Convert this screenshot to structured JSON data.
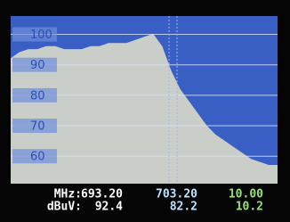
{
  "chart_data": {
    "type": "area",
    "series": [
      {
        "color": "#c9cec8",
        "values": [
          92,
          94,
          95,
          95,
          96,
          96,
          95,
          95,
          95,
          96,
          96,
          97,
          97,
          97,
          98,
          99,
          100,
          96,
          88,
          82,
          78,
          74,
          70,
          67,
          65,
          63,
          61,
          59,
          58,
          57,
          57
        ]
      }
    ],
    "ylim": [
      51,
      106
    ],
    "yticks": [
      60,
      70,
      80,
      90,
      100
    ],
    "grid": true
  },
  "readout": {
    "rows": [
      [
        "MHz:",
        "693.20",
        "703.20",
        "10.00"
      ],
      [
        "dBuV:",
        "92.4",
        "82.2",
        "10.2"
      ]
    ]
  }
}
